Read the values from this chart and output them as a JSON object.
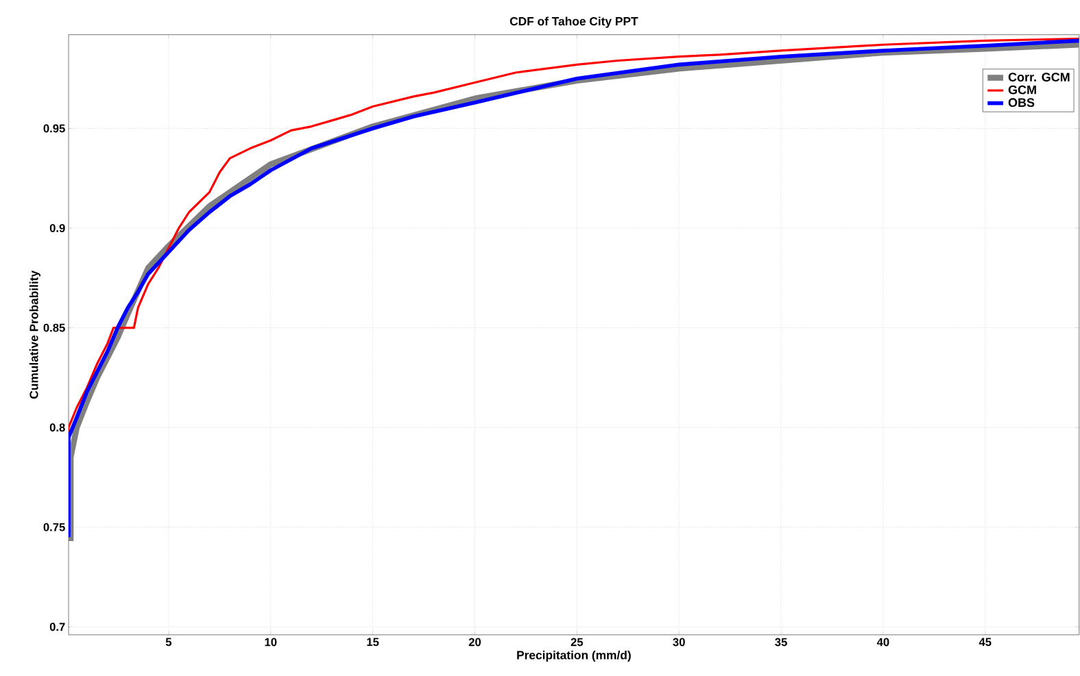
{
  "chart_data": {
    "type": "line",
    "title": "CDF of Tahoe City PPT",
    "xlabel": "Precipitation (mm/d)",
    "ylabel": "Cumulative Probability",
    "xlim": [
      0.1,
      49.6
    ],
    "ylim": [
      0.696,
      0.997
    ],
    "xticks": [
      5,
      10,
      15,
      20,
      25,
      30,
      35,
      40,
      45
    ],
    "yticks": [
      0.7,
      0.75,
      0.8,
      0.85,
      0.9,
      0.95
    ],
    "grid": true,
    "legend": "top right",
    "line_style": "solid",
    "marker": "none",
    "series": [
      {
        "name": "Corr. GCM",
        "color": "#808080",
        "x": [
          0.2,
          0.2,
          0.3,
          0.5,
          1,
          1.5,
          2,
          2.5,
          3,
          4,
          5,
          7,
          10,
          15,
          20,
          25,
          30,
          35,
          40,
          45,
          49.6
        ],
        "values": [
          0.743,
          0.785,
          0.79,
          0.8,
          0.813,
          0.825,
          0.835,
          0.845,
          0.857,
          0.88,
          0.891,
          0.911,
          0.932,
          0.951,
          0.965,
          0.974,
          0.98,
          0.984,
          0.988,
          0.99,
          0.992
        ]
      },
      {
        "name": "GCM",
        "color": "#ff0000",
        "x": [
          0.1,
          0.1,
          0.5,
          1,
          1.5,
          2,
          2.3,
          3.3,
          3.5,
          4,
          4.5,
          5,
          5.5,
          6,
          7,
          7.5,
          8,
          9,
          10,
          11,
          12,
          13,
          14,
          15,
          17,
          18,
          20,
          22,
          25,
          27,
          30,
          32,
          35,
          40,
          45,
          49.6
        ],
        "values": [
          0.75,
          0.8,
          0.81,
          0.82,
          0.832,
          0.842,
          0.85,
          0.85,
          0.86,
          0.872,
          0.88,
          0.89,
          0.9,
          0.908,
          0.918,
          0.928,
          0.935,
          0.94,
          0.944,
          0.949,
          0.951,
          0.954,
          0.957,
          0.961,
          0.966,
          0.968,
          0.973,
          0.978,
          0.982,
          0.984,
          0.986,
          0.987,
          0.989,
          0.992,
          0.994,
          0.995
        ]
      },
      {
        "name": "OBS",
        "color": "#0000ff",
        "x": [
          0.1,
          0.1,
          0.5,
          1,
          1.5,
          2,
          2.5,
          3,
          3.5,
          4,
          5,
          6,
          7,
          8,
          9,
          10,
          12,
          15,
          17,
          20,
          25,
          30,
          35,
          40,
          45,
          49.6
        ],
        "values": [
          0.745,
          0.795,
          0.805,
          0.818,
          0.828,
          0.838,
          0.85,
          0.86,
          0.868,
          0.877,
          0.888,
          0.899,
          0.908,
          0.916,
          0.922,
          0.929,
          0.94,
          0.95,
          0.956,
          0.963,
          0.975,
          0.982,
          0.986,
          0.989,
          0.9915,
          0.994
        ]
      }
    ]
  }
}
